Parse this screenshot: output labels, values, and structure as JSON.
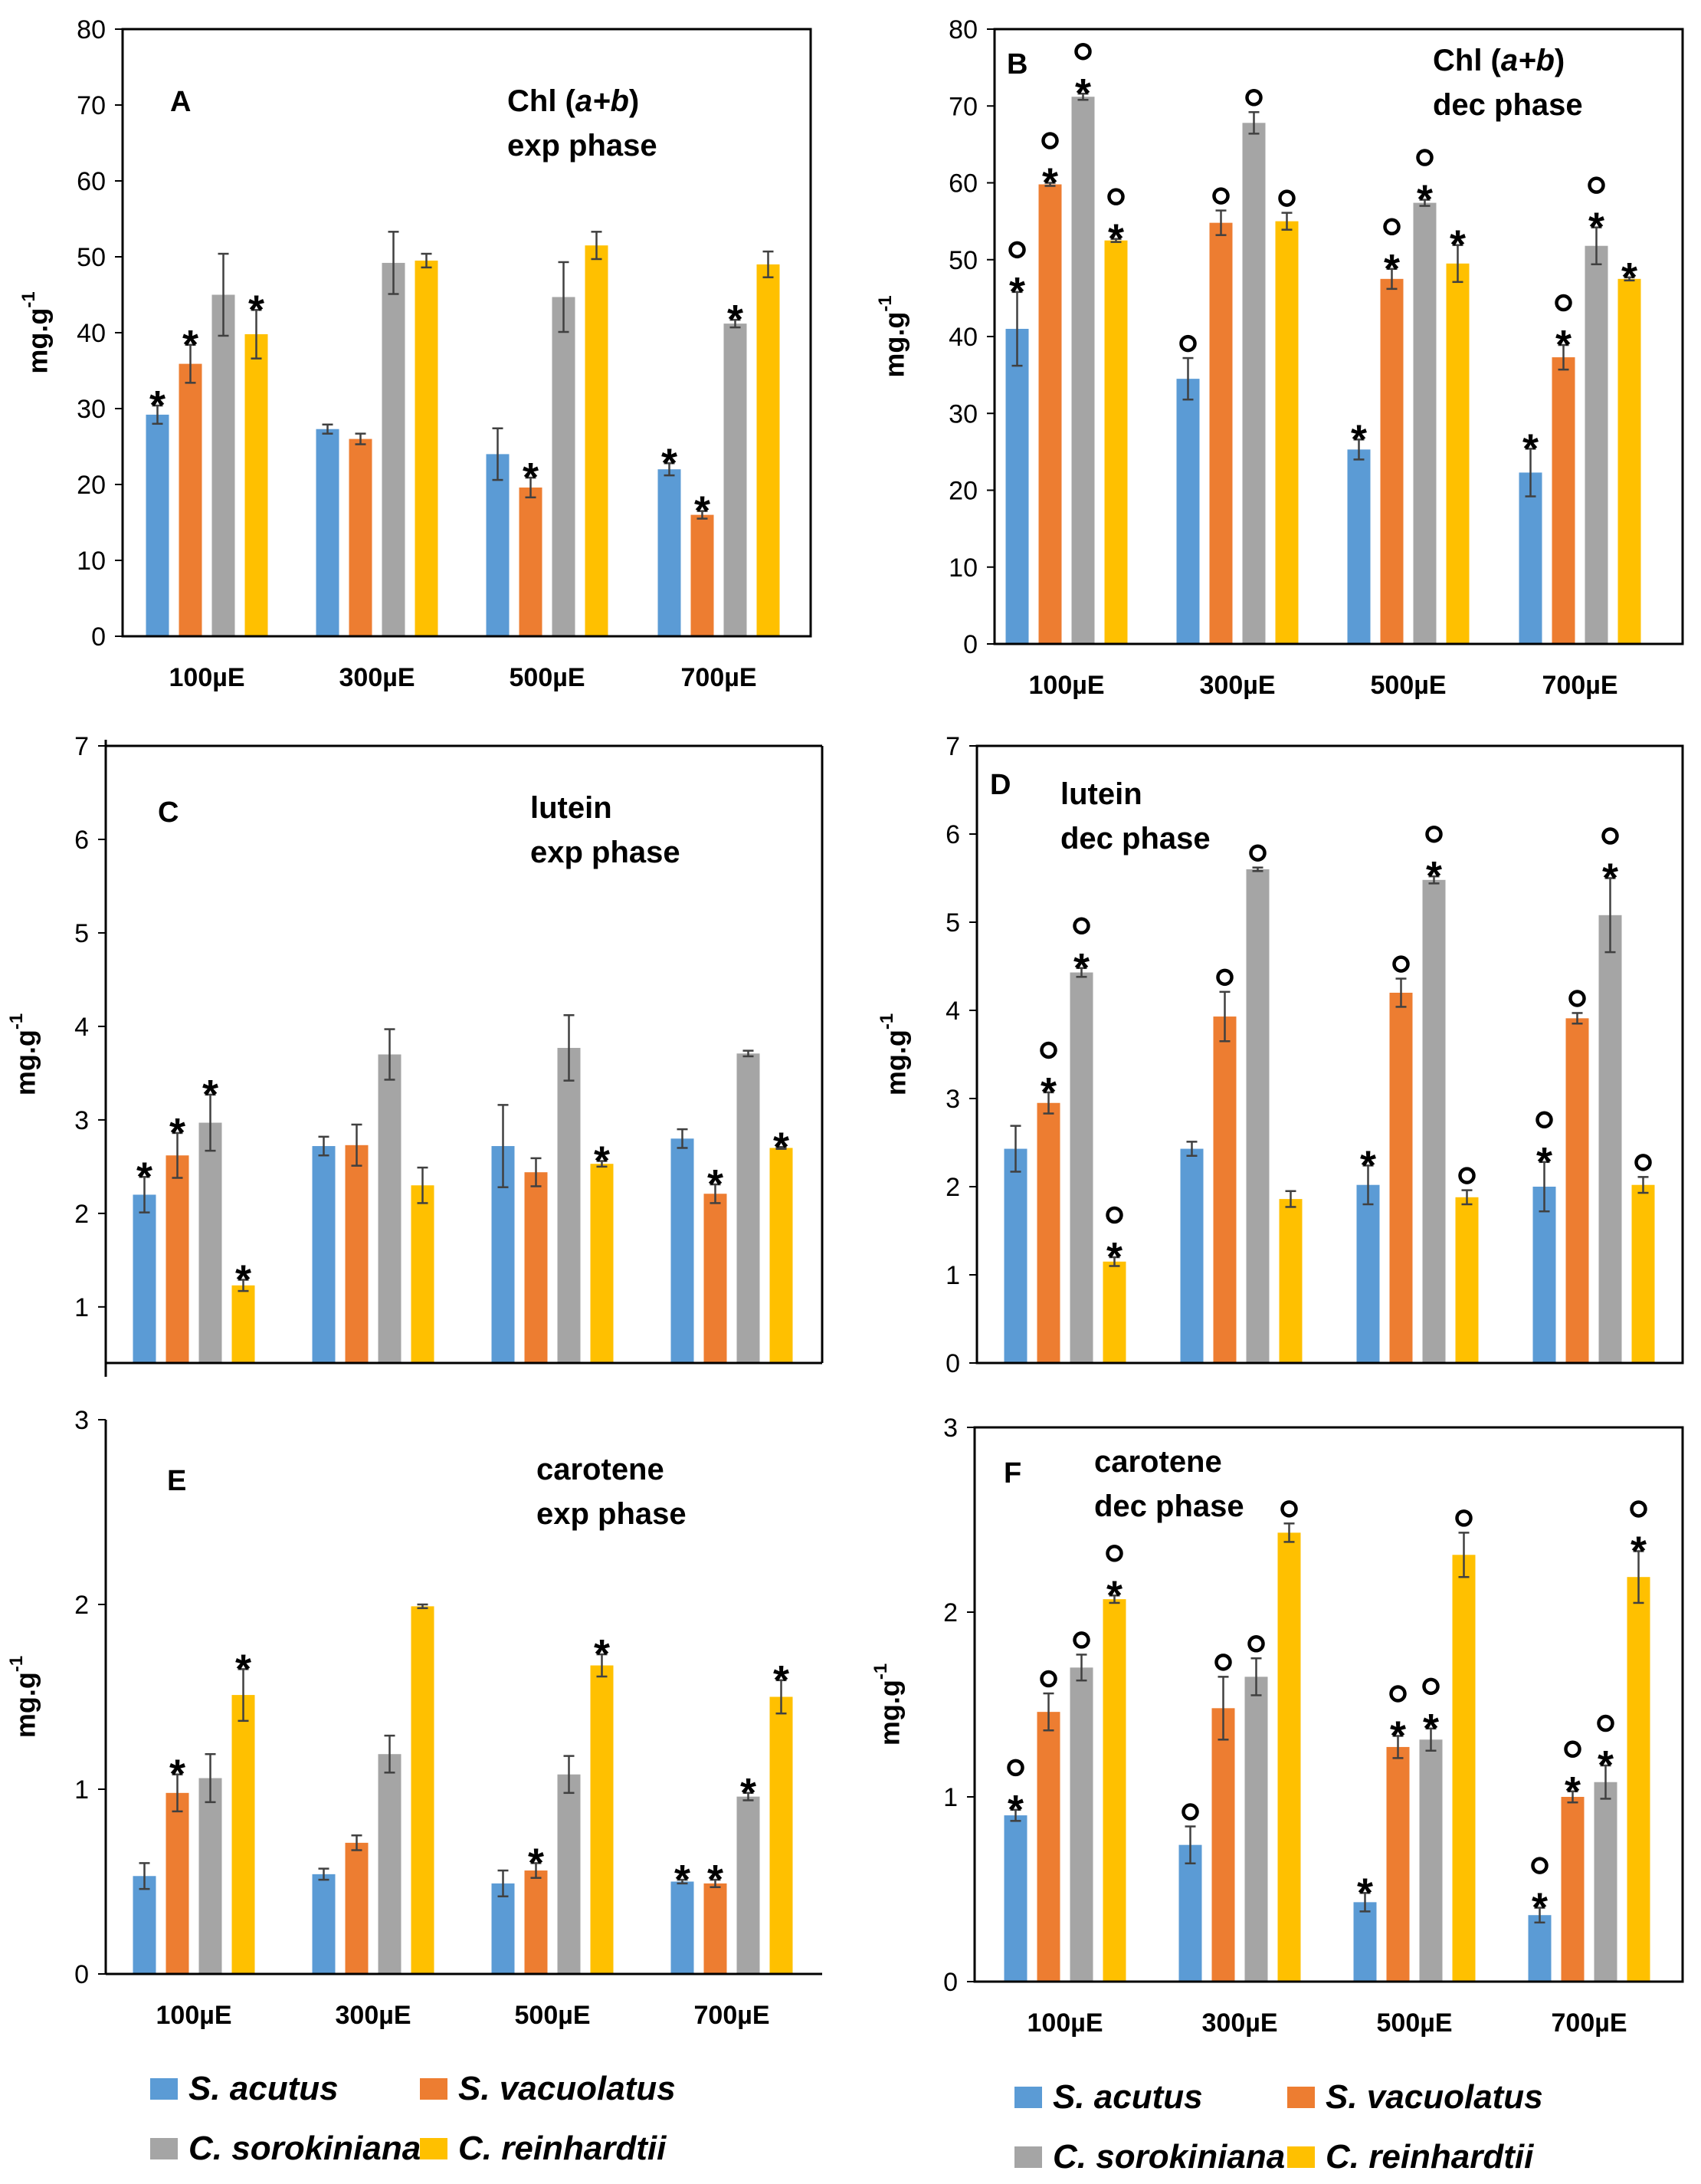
{
  "chart_data": [
    {
      "panel": "A",
      "type": "bar",
      "title_lines": [
        [
          "Chl (",
          {
            "i": "a+b"
          },
          ")"
        ],
        [
          "exp phase"
        ]
      ],
      "ylabel": "mg.g",
      "ylabel_sup": "-1",
      "ylim": [
        0,
        80
      ],
      "yticks": [
        0,
        10,
        20,
        30,
        40,
        50,
        60,
        70,
        80
      ],
      "categories": [
        "100µE",
        "300µE",
        "500µE",
        "700µE"
      ],
      "series": [
        {
          "name": "S. acutus",
          "values": [
            29.2,
            27.3,
            24.0,
            22.0
          ],
          "errors": [
            1.2,
            0.6,
            3.4,
            0.8
          ],
          "marks": [
            "*",
            "",
            "",
            "*"
          ]
        },
        {
          "name": "S. vacuolatus",
          "values": [
            35.9,
            26.0,
            19.6,
            16.0
          ],
          "errors": [
            2.5,
            0.7,
            1.3,
            0.5
          ],
          "marks": [
            "*",
            "",
            "*",
            "*"
          ]
        },
        {
          "name": "C. sorokiniana",
          "values": [
            45.0,
            49.2,
            44.7,
            41.2
          ],
          "errors": [
            5.4,
            4.1,
            4.6,
            0.5
          ],
          "marks": [
            "",
            "",
            "",
            "*"
          ]
        },
        {
          "name": "C. reinhardtii",
          "values": [
            39.8,
            49.5,
            51.5,
            49.0
          ],
          "errors": [
            3.2,
            0.9,
            1.8,
            1.7
          ],
          "marks": [
            "*",
            "",
            "",
            ""
          ]
        }
      ]
    },
    {
      "panel": "B",
      "type": "bar",
      "title_lines": [
        [
          "Chl (",
          {
            "i": "a+b"
          },
          ")"
        ],
        [
          "dec phase"
        ]
      ],
      "ylabel": "mg.g",
      "ylabel_sup": "-1",
      "ylim": [
        0,
        80
      ],
      "yticks": [
        0,
        10,
        20,
        30,
        40,
        50,
        60,
        70,
        80
      ],
      "categories": [
        "100µE",
        "300µE",
        "500µE",
        "700µE"
      ],
      "series": [
        {
          "name": "S. acutus",
          "values": [
            41.0,
            34.5,
            25.3,
            22.3
          ],
          "errors": [
            4.8,
            2.7,
            1.3,
            3.1
          ],
          "marks": [
            "*o",
            "o",
            "*",
            "*"
          ]
        },
        {
          "name": "S. vacuolatus",
          "values": [
            59.8,
            54.8,
            47.5,
            37.3
          ],
          "errors": [
            0.2,
            1.6,
            1.3,
            1.6
          ],
          "marks": [
            "*o",
            "o",
            "*o",
            "*o"
          ]
        },
        {
          "name": "C. sorokiniana",
          "values": [
            71.2,
            67.8,
            57.4,
            51.8
          ],
          "errors": [
            0.4,
            1.4,
            0.4,
            2.4
          ],
          "marks": [
            "*o",
            "o",
            "*o",
            "*o"
          ]
        },
        {
          "name": "C. reinhardtii",
          "values": [
            52.5,
            55.0,
            49.5,
            47.5
          ],
          "errors": [
            0.2,
            1.1,
            2.4,
            0.2
          ],
          "marks": [
            "*o",
            "o",
            "*",
            "*"
          ]
        }
      ]
    },
    {
      "panel": "C",
      "type": "bar",
      "title_lines": [
        [
          "lutein"
        ],
        [
          "exp phase"
        ]
      ],
      "ylabel": "mg.g",
      "ylabel_sup": "-1",
      "ylim": [
        0.4,
        7
      ],
      "yticks": [
        1,
        2,
        3,
        4,
        5,
        6,
        7
      ],
      "categories": [
        "100µE",
        "300µE",
        "500µE",
        "700µE"
      ],
      "series": [
        {
          "name": "S. acutus",
          "values": [
            2.2,
            2.72,
            2.72,
            2.8
          ],
          "errors": [
            0.19,
            0.1,
            0.44,
            0.1
          ],
          "marks": [
            "*",
            "",
            "",
            ""
          ]
        },
        {
          "name": "S. vacuolatus",
          "values": [
            2.62,
            2.73,
            2.44,
            2.21
          ],
          "errors": [
            0.24,
            0.22,
            0.15,
            0.1
          ],
          "marks": [
            "*",
            "",
            "",
            "*"
          ]
        },
        {
          "name": "C. sorokiniana",
          "values": [
            2.97,
            3.7,
            3.77,
            3.71
          ],
          "errors": [
            0.3,
            0.27,
            0.35,
            0.03
          ],
          "marks": [
            "*",
            "",
            "",
            ""
          ]
        },
        {
          "name": "C. reinhardtii",
          "values": [
            1.23,
            2.3,
            2.53,
            2.7
          ],
          "errors": [
            0.06,
            0.19,
            0.03,
            0.01
          ],
          "marks": [
            "*",
            "",
            "*",
            "*"
          ]
        }
      ]
    },
    {
      "panel": "D",
      "type": "bar",
      "title_lines": [
        [
          "lutein"
        ],
        [
          "dec phase"
        ]
      ],
      "ylabel": "mg.g",
      "ylabel_sup": "-1",
      "ylim": [
        0,
        7
      ],
      "yticks": [
        0,
        1,
        2,
        3,
        4,
        5,
        6,
        7
      ],
      "categories": [
        "100µE",
        "300µE",
        "500µE",
        "700µE"
      ],
      "series": [
        {
          "name": "S. acutus",
          "values": [
            2.43,
            2.43,
            2.02,
            2.0
          ],
          "errors": [
            0.26,
            0.08,
            0.22,
            0.28
          ],
          "marks": [
            "",
            "",
            "*",
            "*o"
          ]
        },
        {
          "name": "S. vacuolatus",
          "values": [
            2.95,
            3.93,
            4.2,
            3.91
          ],
          "errors": [
            0.12,
            0.28,
            0.16,
            0.06
          ],
          "marks": [
            "*o",
            "o",
            "o",
            "o"
          ]
        },
        {
          "name": "C. sorokiniana",
          "values": [
            4.43,
            5.6,
            5.48,
            5.08
          ],
          "errors": [
            0.05,
            0.02,
            0.04,
            0.42
          ],
          "marks": [
            "*o",
            "o",
            "*o",
            "*o"
          ]
        },
        {
          "name": "C. reinhardtii",
          "values": [
            1.15,
            1.86,
            1.88,
            2.02
          ],
          "errors": [
            0.05,
            0.09,
            0.08,
            0.09
          ],
          "marks": [
            "*o",
            "",
            "o",
            "o"
          ]
        }
      ]
    },
    {
      "panel": "E",
      "type": "bar",
      "title_lines": [
        [
          "carotene"
        ],
        [
          "exp phase"
        ]
      ],
      "ylabel": "mg.g",
      "ylabel_sup": "-1",
      "ylim": [
        0,
        3
      ],
      "yticks": [
        0,
        1,
        2,
        3
      ],
      "categories": [
        "100µE",
        "300µE",
        "500µE",
        "700µE"
      ],
      "series": [
        {
          "name": "S. acutus",
          "values": [
            0.53,
            0.54,
            0.49,
            0.5
          ],
          "errors": [
            0.07,
            0.03,
            0.07,
            0.01
          ],
          "marks": [
            "",
            "",
            "",
            "*"
          ]
        },
        {
          "name": "S. vacuolatus",
          "values": [
            0.98,
            0.71,
            0.56,
            0.49
          ],
          "errors": [
            0.1,
            0.04,
            0.04,
            0.02
          ],
          "marks": [
            "*",
            "",
            "*",
            "*"
          ]
        },
        {
          "name": "C. sorokiniana",
          "values": [
            1.06,
            1.19,
            1.08,
            0.96
          ],
          "errors": [
            0.13,
            0.1,
            0.1,
            0.02
          ],
          "marks": [
            "",
            "",
            "",
            "*"
          ]
        },
        {
          "name": "C. reinhardtii",
          "values": [
            1.51,
            1.99,
            1.67,
            1.5
          ],
          "errors": [
            0.14,
            0.01,
            0.06,
            0.09
          ],
          "marks": [
            "*",
            "",
            "*",
            "*"
          ]
        }
      ]
    },
    {
      "panel": "F",
      "type": "bar",
      "title_lines": [
        [
          "carotene"
        ],
        [
          "dec phase"
        ]
      ],
      "ylabel": "mg.g",
      "ylabel_sup": "-1",
      "ylim": [
        0,
        3
      ],
      "yticks": [
        0,
        1,
        2,
        3
      ],
      "categories": [
        "100µE",
        "300µE",
        "500µE",
        "700µE"
      ],
      "series": [
        {
          "name": "S. acutus",
          "values": [
            0.9,
            0.74,
            0.43,
            0.36
          ],
          "errors": [
            0.03,
            0.1,
            0.05,
            0.04
          ],
          "marks": [
            "*o",
            "o",
            "*",
            "*o"
          ]
        },
        {
          "name": "S. vacuolatus",
          "values": [
            1.46,
            1.48,
            1.27,
            1.0
          ],
          "errors": [
            0.1,
            0.17,
            0.06,
            0.03
          ],
          "marks": [
            "o",
            "o",
            "*o",
            "*o"
          ]
        },
        {
          "name": "C. sorokiniana",
          "values": [
            1.7,
            1.65,
            1.31,
            1.08
          ],
          "errors": [
            0.07,
            0.1,
            0.06,
            0.09
          ],
          "marks": [
            "o",
            "o",
            "*o",
            "*o"
          ]
        },
        {
          "name": "C. reinhardtii",
          "values": [
            2.07,
            2.43,
            2.31,
            2.19
          ],
          "errors": [
            0.02,
            0.05,
            0.12,
            0.14
          ],
          "marks": [
            "*o",
            "o",
            "o",
            "*o"
          ]
        }
      ]
    }
  ],
  "legend": {
    "items": [
      {
        "name": "S. acutus",
        "color": "#5b9bd5"
      },
      {
        "name": "S. vacuolatus",
        "color": "#ed7d31"
      },
      {
        "name": "C. sorokiniana",
        "color": "#a5a5a5"
      },
      {
        "name": "C. reinhardtii",
        "color": "#ffc000"
      }
    ]
  },
  "colors": {
    "series": [
      "#5b9bd5",
      "#ed7d31",
      "#a5a5a5",
      "#ffc000"
    ],
    "frame": "#000000",
    "error": "#404040"
  }
}
